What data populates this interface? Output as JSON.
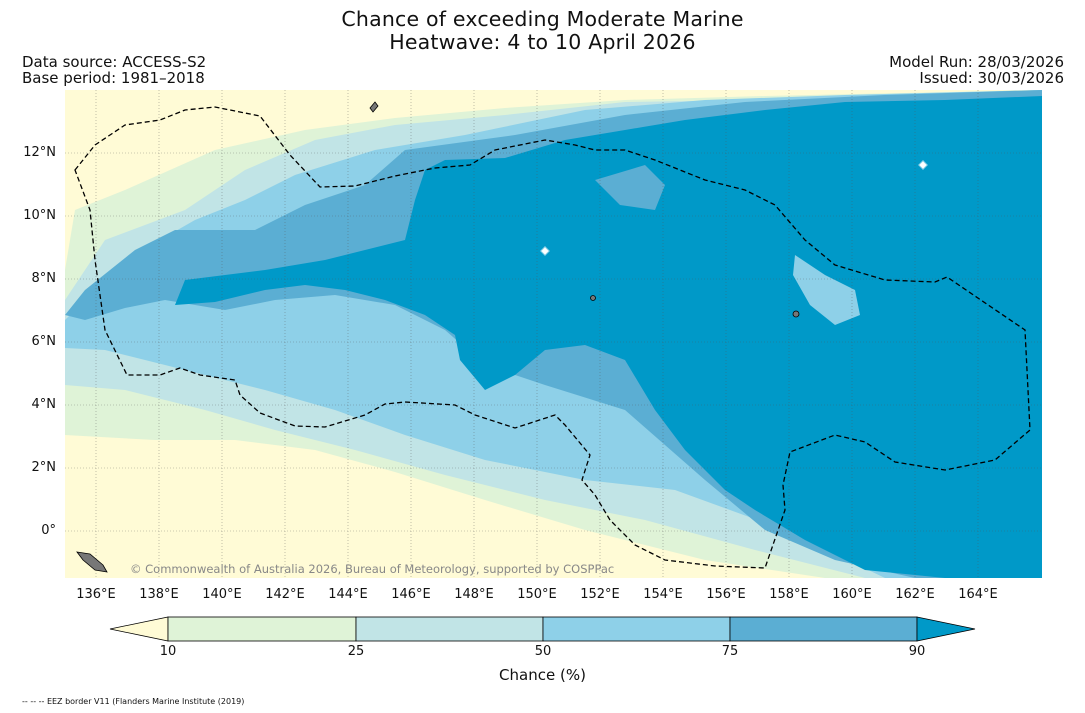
{
  "title_lines": [
    "Chance of exceeding Moderate Marine",
    "Heatwave: 4 to 10 April 2026"
  ],
  "data_source": "Data source: ACCESS-S2",
  "base_period": "Base period: 1981–2018",
  "model_run": "Model Run: 28/03/2026",
  "issued": "Issued: 30/03/2026",
  "copyright": "© Commonwealth of Australia 2026, Bureau of Meteorology, supported by COSPPac",
  "x_ticks": [
    "136°E",
    "138°E",
    "140°E",
    "142°E",
    "144°E",
    "146°E",
    "148°E",
    "150°E",
    "152°E",
    "154°E",
    "156°E",
    "158°E",
    "160°E",
    "162°E",
    "164°E"
  ],
  "y_ticks": [
    "12°N",
    "10°N",
    "8°N",
    "6°N",
    "4°N",
    "2°N",
    "0°"
  ],
  "colorbar": {
    "ticks": [
      "10",
      "25",
      "50",
      "75",
      "90"
    ],
    "label": "Chance (%)",
    "colors": [
      "#fffbd6",
      "#dff3d7",
      "#c1e4e6",
      "#8ed0e8",
      "#5baed3",
      "#0099c8"
    ]
  },
  "legend_note": "-- -- -- EEZ border V11 (Flanders Marine Institute (2019)"
}
